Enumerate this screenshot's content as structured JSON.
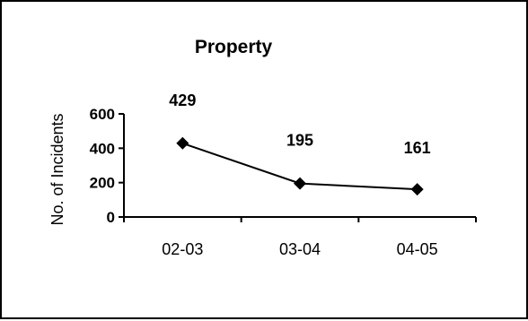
{
  "chart_data": {
    "type": "line",
    "title": "Property",
    "xlabel": "",
    "ylabel": "No. of Incidents",
    "categories": [
      "02-03",
      "03-04",
      "04-05"
    ],
    "series": [
      {
        "values": [
          429,
          195,
          161
        ]
      }
    ],
    "ylim": [
      0,
      600
    ],
    "yticks": [
      0,
      200,
      400,
      600
    ],
    "data_labels": [
      "429",
      "195",
      "161"
    ],
    "marker": "diamond",
    "grid": false,
    "legend": "none",
    "colors": {
      "line": "#000000",
      "marker": "#000000",
      "border": "#000000"
    }
  }
}
